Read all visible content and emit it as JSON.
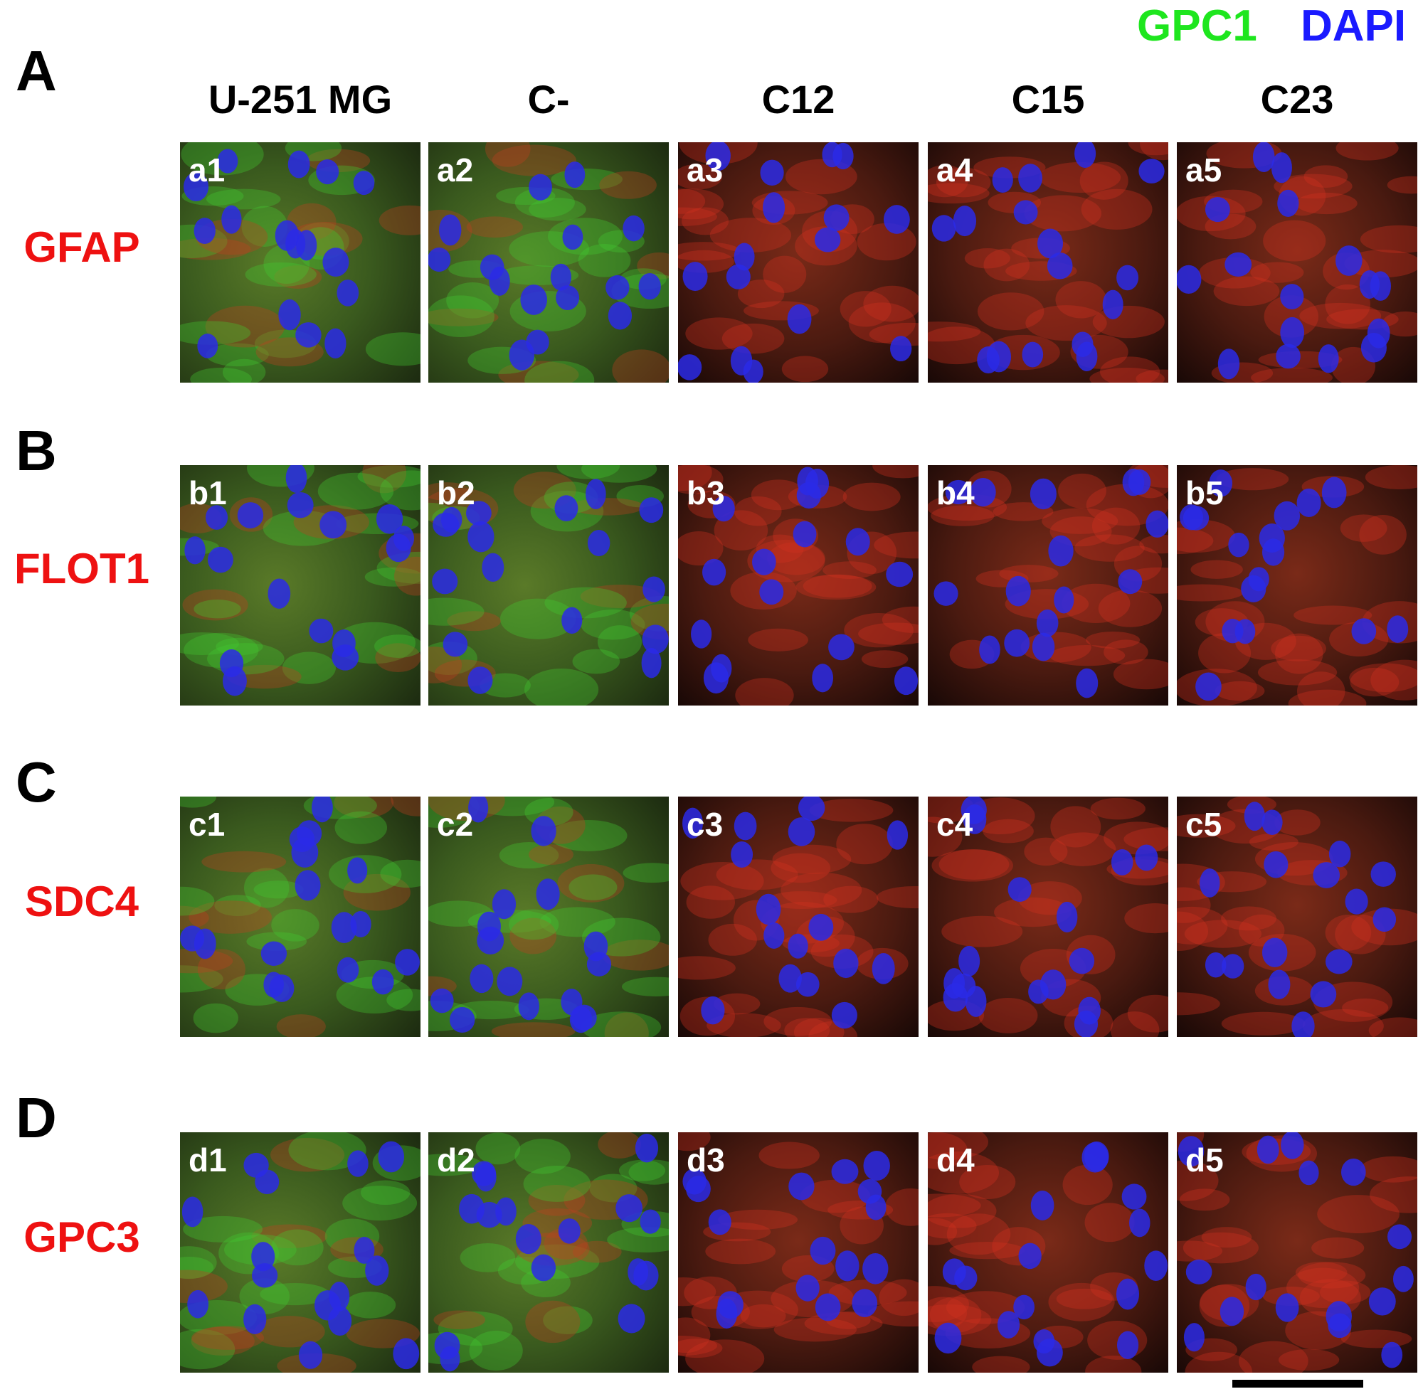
{
  "legend": {
    "stains": [
      "GPC1",
      "DAPI"
    ]
  },
  "columns": [
    "U-251 MG",
    "C-",
    "C12",
    "C15",
    "C23"
  ],
  "rows": [
    {
      "letter": "A",
      "marker": "GFAP",
      "panels": [
        "a1",
        "a2",
        "a3",
        "a4",
        "a5"
      ]
    },
    {
      "letter": "B",
      "marker": "FLOT1",
      "panels": [
        "b1",
        "b2",
        "b3",
        "b4",
        "b5"
      ]
    },
    {
      "letter": "C",
      "marker": "SDC4",
      "panels": [
        "c1",
        "c2",
        "c3",
        "c4",
        "c5"
      ]
    },
    {
      "letter": "D",
      "marker": "GPC3",
      "panels": [
        "d1",
        "d2",
        "d3",
        "d4",
        "d5"
      ]
    }
  ]
}
